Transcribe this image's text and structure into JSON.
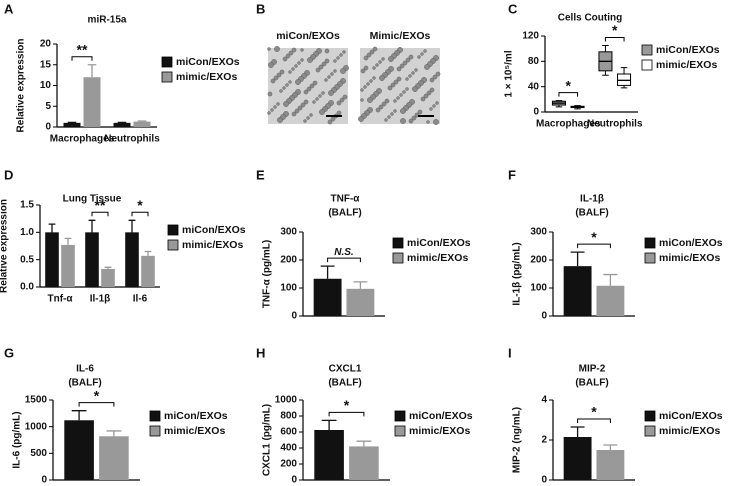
{
  "chart_data": [
    {
      "panel": "A",
      "type": "bar",
      "title": "miR-15a",
      "y_label": "Relative expression",
      "categories": [
        "Macrophages",
        "Neutrophils"
      ],
      "series": [
        {
          "name": "miCon/EXOs",
          "color": "#111111",
          "values": [
            1,
            1
          ],
          "errors": [
            0.1,
            0.1
          ]
        },
        {
          "name": "mimic/EXOs",
          "color": "#999999",
          "values": [
            12,
            1.3
          ],
          "errors": [
            3,
            0.15
          ]
        }
      ],
      "ylim": [
        0,
        20
      ],
      "yticks": [
        0,
        5,
        10,
        15,
        20
      ],
      "annotations": [
        "**",
        null
      ]
    },
    {
      "panel": "B",
      "type": "image",
      "images": [
        "miCon/EXOs",
        "Mimic/EXOs"
      ]
    },
    {
      "panel": "C",
      "type": "box",
      "title": "Cells Couting",
      "y_label": "1 × 10⁵/ml",
      "categories": [
        "Macrophages",
        "Neutrophils"
      ],
      "series": [
        {
          "name": "miCon/EXOs",
          "color": "#999999",
          "boxes": [
            {
              "min": 8,
              "q1": 11,
              "median": 14,
              "q3": 17,
              "max": 18
            },
            {
              "min": 58,
              "q1": 65,
              "median": 80,
              "q3": 95,
              "max": 105
            }
          ]
        },
        {
          "name": "mimic/EXOs",
          "color": "#ffffff",
          "boxes": [
            {
              "min": 5,
              "q1": 7,
              "median": 8,
              "q3": 9,
              "max": 10
            },
            {
              "min": 38,
              "q1": 42,
              "median": 50,
              "q3": 60,
              "max": 70
            }
          ]
        }
      ],
      "ylim": [
        0,
        120
      ],
      "yticks": [
        0,
        40,
        80,
        120
      ],
      "annotations": [
        "*",
        "*"
      ]
    },
    {
      "panel": "D",
      "type": "bar",
      "title": "Lung Tissue",
      "y_label": "Relative expression",
      "categories": [
        "Tnf-α",
        "Il-1β",
        "Il-6"
      ],
      "series": [
        {
          "name": "miCon/EXOs",
          "color": "#111111",
          "values": [
            1,
            1,
            1
          ],
          "errors": [
            0.15,
            0.22,
            0.22
          ]
        },
        {
          "name": "mimic/EXOs",
          "color": "#999999",
          "values": [
            0.77,
            0.33,
            0.57
          ],
          "errors": [
            0.12,
            0.03,
            0.08
          ]
        }
      ],
      "ylim": [
        0,
        1.5
      ],
      "yticks": [
        {
          "value": 0,
          "label": "0.0"
        },
        0.5,
        {
          "value": 1,
          "label": "1.0"
        },
        1.5
      ],
      "annotations": [
        null,
        "**",
        "*"
      ]
    },
    {
      "panel": "E",
      "type": "bar",
      "title": "TNF-α",
      "subtitle": "(BALF)",
      "y_label": "TNF-α (pg/mL)",
      "series": [
        {
          "name": "miCon/EXOs",
          "color": "#111111",
          "values": [
            133
          ],
          "errors": [
            45
          ]
        },
        {
          "name": "mimic/EXOs",
          "color": "#999999",
          "values": [
            97
          ],
          "errors": [
            25
          ]
        }
      ],
      "ylim": [
        0,
        300
      ],
      "yticks": [
        0,
        100,
        200,
        300
      ],
      "annotations": [
        "N.S."
      ]
    },
    {
      "panel": "F",
      "type": "bar",
      "title": "IL-1β",
      "subtitle": "(BALF)",
      "y_label": "IL-1β (pg/mL)",
      "series": [
        {
          "name": "miCon/EXOs",
          "color": "#111111",
          "values": [
            178
          ],
          "errors": [
            50
          ]
        },
        {
          "name": "mimic/EXOs",
          "color": "#999999",
          "values": [
            108
          ],
          "errors": [
            40
          ]
        }
      ],
      "ylim": [
        0,
        300
      ],
      "yticks": [
        0,
        100,
        200,
        300
      ],
      "annotations": [
        "*"
      ]
    },
    {
      "panel": "G",
      "type": "bar",
      "title": "IL-6",
      "subtitle": "(BALF)",
      "y_label": "IL-6 (pg/mL)",
      "series": [
        {
          "name": "miCon/EXOs",
          "color": "#111111",
          "values": [
            1120
          ],
          "errors": [
            180
          ]
        },
        {
          "name": "mimic/EXOs",
          "color": "#999999",
          "values": [
            820
          ],
          "errors": [
            100
          ]
        }
      ],
      "ylim": [
        0,
        1500
      ],
      "yticks": [
        0,
        500,
        1000,
        1500
      ],
      "annotations": [
        "*"
      ]
    },
    {
      "panel": "H",
      "type": "bar",
      "title": "CXCL1",
      "subtitle": "(BALF)",
      "y_label": "CXCL1 (pg/mL)",
      "series": [
        {
          "name": "miCon/EXOs",
          "color": "#111111",
          "values": [
            625
          ],
          "errors": [
            120
          ]
        },
        {
          "name": "mimic/EXOs",
          "color": "#999999",
          "values": [
            420
          ],
          "errors": [
            65
          ]
        }
      ],
      "ylim": [
        0,
        1000
      ],
      "yticks": [
        0,
        200,
        400,
        600,
        800,
        1000
      ],
      "annotations": [
        "*"
      ]
    },
    {
      "panel": "I",
      "type": "bar",
      "title": "MIP-2",
      "subtitle": "(BALF)",
      "y_label": "MIP-2 (ng/mL)",
      "series": [
        {
          "name": "miCon/EXOs",
          "color": "#111111",
          "values": [
            2.15
          ],
          "errors": [
            0.5
          ]
        },
        {
          "name": "mimic/EXOs",
          "color": "#999999",
          "values": [
            1.5
          ],
          "errors": [
            0.25
          ]
        }
      ],
      "ylim": [
        0,
        4
      ],
      "yticks": [
        0,
        2,
        4
      ],
      "annotations": [
        "*"
      ]
    }
  ]
}
